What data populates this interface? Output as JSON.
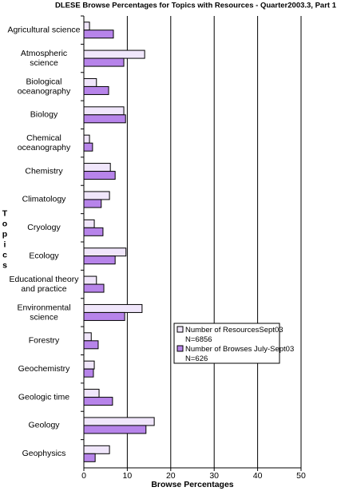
{
  "chart_data": {
    "type": "barh",
    "title": "DLESE Browse Percentages for Topics with Resources - Quarter2003.3, Part 1",
    "x_label": "Browse Percentages",
    "y_label": "Topics",
    "categories": [
      "Agricultural science",
      "Atmospheric\nscience",
      "Biological\noceanography",
      "Biology",
      "Chemical\noceanography",
      "Chemistry",
      "Climatology",
      "Cryology",
      "Ecology",
      "Educational theory\nand practice",
      "Environmental\nscience",
      "Forestry",
      "Geochemistry",
      "Geologic time",
      "Geology",
      "Geophysics"
    ],
    "series": [
      {
        "name": "Number of ResourcesSept03\nN=6856",
        "color": "#f0e6fb",
        "values": [
          1.3,
          14.0,
          2.9,
          9.2,
          1.3,
          6.1,
          5.9,
          2.4,
          9.7,
          2.9,
          13.4,
          1.7,
          2.4,
          3.5,
          16.2,
          5.9
        ]
      },
      {
        "name": "Number of Browses July-Sept03\nN=626",
        "color": "#b784ea",
        "values": [
          6.8,
          9.2,
          5.7,
          9.6,
          2.0,
          7.2,
          4.0,
          4.4,
          7.2,
          4.6,
          9.4,
          3.3,
          2.2,
          6.6,
          14.3,
          2.6
        ]
      }
    ],
    "xlim": [
      0,
      50
    ],
    "xticks": [
      0,
      10,
      20,
      30,
      40,
      50
    ],
    "grid": true,
    "legend_position": "right"
  }
}
